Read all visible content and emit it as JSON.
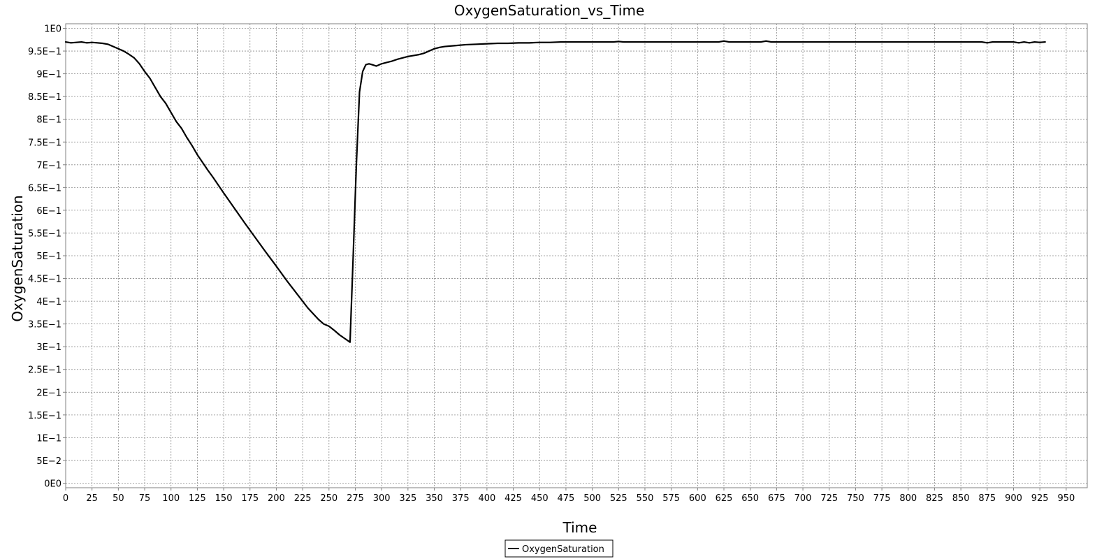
{
  "chart_data": {
    "type": "line",
    "title": "OxygenSaturation_vs_Time",
    "xlabel": "Time",
    "ylabel": "OxygenSaturation",
    "xlim": [
      0,
      970
    ],
    "ylim": [
      -0.01,
      1.01
    ],
    "x_ticks": [
      0,
      25,
      50,
      75,
      100,
      125,
      150,
      175,
      200,
      225,
      250,
      275,
      300,
      325,
      350,
      375,
      400,
      425,
      450,
      475,
      500,
      525,
      550,
      575,
      600,
      625,
      650,
      675,
      700,
      725,
      750,
      775,
      800,
      825,
      850,
      875,
      900,
      925,
      950
    ],
    "x_tick_labels": [
      "0",
      "25",
      "50",
      "75",
      "100",
      "125",
      "150",
      "175",
      "200",
      "225",
      "250",
      "275",
      "300",
      "325",
      "350",
      "375",
      "400",
      "425",
      "450",
      "475",
      "500",
      "525",
      "550",
      "575",
      "600",
      "625",
      "650",
      "675",
      "700",
      "725",
      "750",
      "775",
      "800",
      "825",
      "850",
      "875",
      "900",
      "925",
      "950"
    ],
    "y_ticks": [
      0,
      0.05,
      0.1,
      0.15,
      0.2,
      0.25,
      0.3,
      0.35,
      0.4,
      0.45,
      0.5,
      0.55,
      0.6,
      0.65,
      0.7,
      0.75,
      0.8,
      0.85,
      0.9,
      0.95,
      1.0
    ],
    "y_tick_labels": [
      "0E0",
      "5E−2",
      "1E−1",
      "1.5E−1",
      "2E−1",
      "2.5E−1",
      "3E−1",
      "3.5E−1",
      "4E−1",
      "4.5E−1",
      "5E−1",
      "5.5E−1",
      "6E−1",
      "6.5E−1",
      "7E−1",
      "7.5E−1",
      "8E−1",
      "8.5E−1",
      "9E−1",
      "9.5E−1",
      "1E0"
    ],
    "grid": true,
    "legend_position": "bottom-center",
    "series": [
      {
        "name": "OxygenSaturation",
        "color": "#000000",
        "x": [
          0,
          5,
          10,
          15,
          20,
          25,
          30,
          35,
          40,
          45,
          50,
          55,
          60,
          65,
          70,
          75,
          80,
          85,
          90,
          95,
          100,
          105,
          110,
          115,
          120,
          125,
          130,
          135,
          140,
          150,
          160,
          170,
          180,
          190,
          200,
          210,
          220,
          230,
          240,
          245,
          250,
          255,
          260,
          265,
          270,
          273,
          276,
          279,
          282,
          285,
          288,
          291,
          295,
          300,
          305,
          310,
          315,
          320,
          325,
          330,
          335,
          340,
          345,
          350,
          355,
          360,
          370,
          380,
          390,
          400,
          410,
          420,
          430,
          440,
          450,
          460,
          470,
          480,
          500,
          520,
          525,
          530,
          550,
          600,
          620,
          625,
          630,
          640,
          660,
          665,
          670,
          700,
          750,
          800,
          850,
          870,
          875,
          880,
          890,
          900,
          905,
          910,
          915,
          920,
          925,
          930
        ],
        "y": [
          0.97,
          0.968,
          0.969,
          0.97,
          0.968,
          0.969,
          0.968,
          0.967,
          0.965,
          0.96,
          0.955,
          0.95,
          0.943,
          0.935,
          0.922,
          0.905,
          0.89,
          0.87,
          0.85,
          0.835,
          0.815,
          0.795,
          0.78,
          0.76,
          0.742,
          0.722,
          0.705,
          0.688,
          0.672,
          0.638,
          0.605,
          0.572,
          0.54,
          0.508,
          0.477,
          0.445,
          0.415,
          0.385,
          0.36,
          0.35,
          0.345,
          0.336,
          0.326,
          0.318,
          0.31,
          0.5,
          0.7,
          0.86,
          0.905,
          0.92,
          0.922,
          0.92,
          0.917,
          0.922,
          0.925,
          0.928,
          0.932,
          0.935,
          0.938,
          0.94,
          0.942,
          0.945,
          0.95,
          0.955,
          0.958,
          0.96,
          0.962,
          0.964,
          0.965,
          0.966,
          0.967,
          0.967,
          0.968,
          0.968,
          0.969,
          0.969,
          0.97,
          0.97,
          0.97,
          0.97,
          0.971,
          0.97,
          0.97,
          0.97,
          0.97,
          0.972,
          0.97,
          0.97,
          0.97,
          0.972,
          0.97,
          0.97,
          0.97,
          0.97,
          0.97,
          0.97,
          0.968,
          0.97,
          0.97,
          0.97,
          0.968,
          0.97,
          0.968,
          0.97,
          0.969,
          0.97
        ]
      }
    ]
  }
}
